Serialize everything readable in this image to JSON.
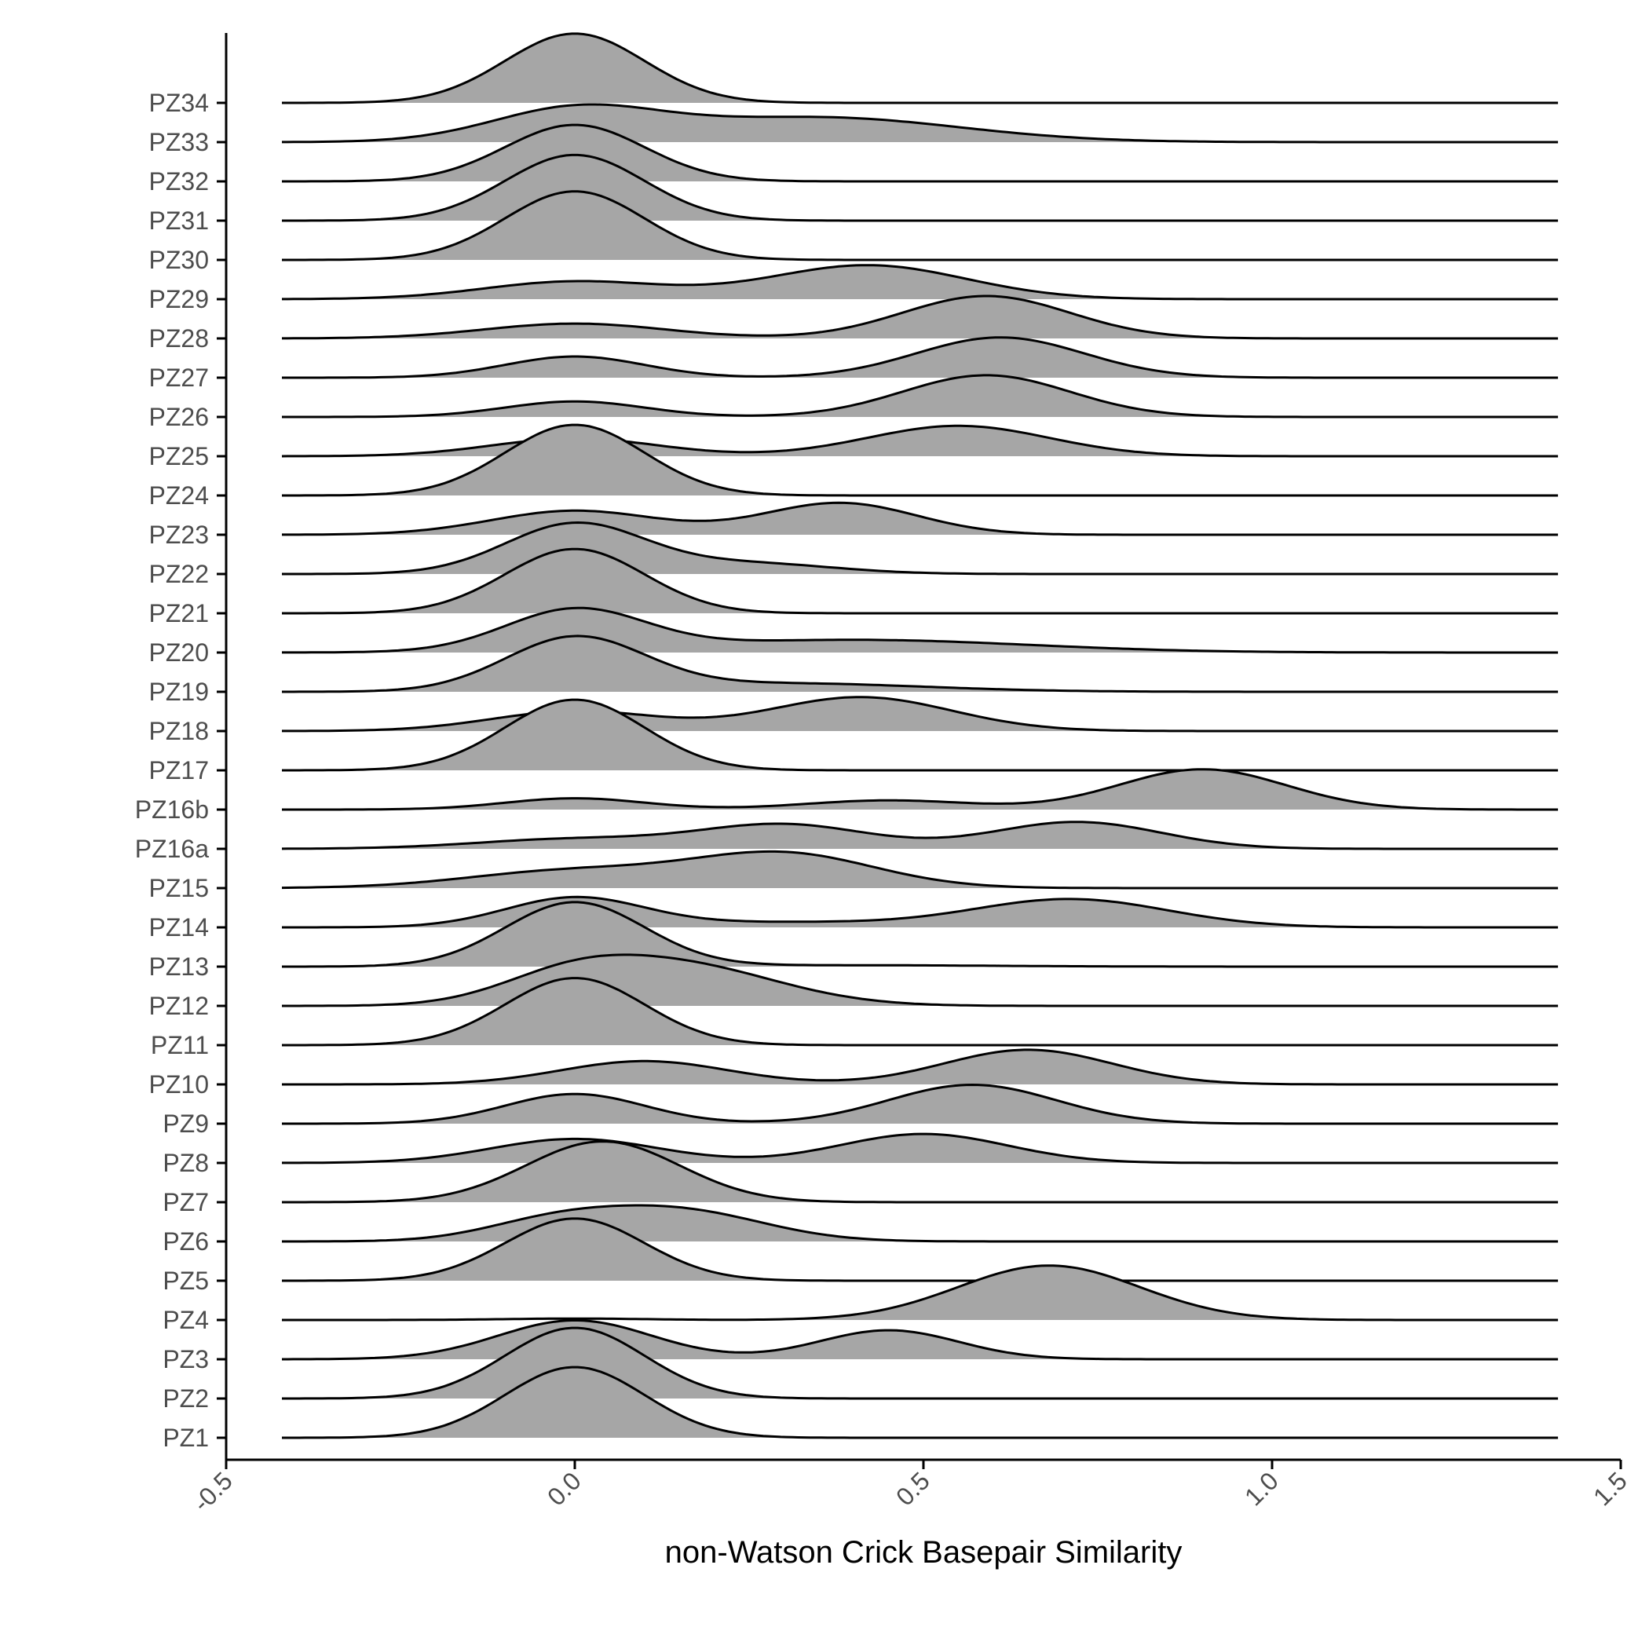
{
  "chart_data": {
    "type": "ridgeline",
    "xlabel": "non-Watson Crick Basepair Similarity",
    "xlim": [
      -0.5,
      1.5
    ],
    "x_ticks": [
      -0.5,
      0.0,
      0.5,
      1.0,
      1.5
    ],
    "x_tick_labels": [
      "-0.5",
      "0.0",
      "0.5",
      "1.0",
      "1.5"
    ],
    "density_range": [
      -0.42,
      1.41
    ],
    "fill_color": "#a6a6a6",
    "line_color": "#000000",
    "grid": false,
    "legend": "none",
    "note": "each series is a mixture of gaussian peaks: [center, width, relative_height]",
    "series": [
      {
        "name": "PZ1",
        "peaks": [
          [
            0.0,
            0.1,
            1.0
          ]
        ]
      },
      {
        "name": "PZ2",
        "peaks": [
          [
            0.0,
            0.1,
            1.0
          ]
        ]
      },
      {
        "name": "PZ3",
        "peaks": [
          [
            0.0,
            0.11,
            0.55
          ],
          [
            0.45,
            0.1,
            0.41
          ]
        ]
      },
      {
        "name": "PZ4",
        "peaks": [
          [
            0.0,
            0.1,
            0.02
          ],
          [
            0.68,
            0.13,
            0.77
          ]
        ]
      },
      {
        "name": "PZ5",
        "peaks": [
          [
            0.0,
            0.1,
            0.88
          ]
        ]
      },
      {
        "name": "PZ6",
        "peaks": [
          [
            -0.03,
            0.1,
            0.27
          ],
          [
            0.15,
            0.12,
            0.43
          ]
        ]
      },
      {
        "name": "PZ7",
        "peaks": [
          [
            0.04,
            0.11,
            0.86
          ]
        ]
      },
      {
        "name": "PZ8",
        "peaks": [
          [
            0.0,
            0.12,
            0.34
          ],
          [
            0.5,
            0.12,
            0.41
          ]
        ]
      },
      {
        "name": "PZ9",
        "peaks": [
          [
            0.0,
            0.1,
            0.42
          ],
          [
            0.57,
            0.12,
            0.55
          ]
        ]
      },
      {
        "name": "PZ10",
        "peaks": [
          [
            0.1,
            0.12,
            0.33
          ],
          [
            0.65,
            0.12,
            0.49
          ]
        ]
      },
      {
        "name": "PZ11",
        "peaks": [
          [
            0.0,
            0.1,
            0.95
          ]
        ]
      },
      {
        "name": "PZ12",
        "peaks": [
          [
            -0.01,
            0.1,
            0.33
          ],
          [
            0.15,
            0.14,
            0.57
          ]
        ]
      },
      {
        "name": "PZ13",
        "peaks": [
          [
            0.0,
            0.1,
            0.91
          ],
          [
            0.4,
            0.2,
            0.02
          ]
        ]
      },
      {
        "name": "PZ14",
        "peaks": [
          [
            0.0,
            0.1,
            0.42
          ],
          [
            0.3,
            0.15,
            0.07
          ],
          [
            0.71,
            0.14,
            0.4
          ]
        ]
      },
      {
        "name": "PZ15",
        "peaks": [
          [
            0.0,
            0.15,
            0.25
          ],
          [
            0.3,
            0.13,
            0.48
          ]
        ]
      },
      {
        "name": "PZ16a",
        "peaks": [
          [
            0.0,
            0.14,
            0.14
          ],
          [
            0.3,
            0.12,
            0.34
          ],
          [
            0.72,
            0.12,
            0.38
          ]
        ]
      },
      {
        "name": "PZ16b",
        "peaks": [
          [
            0.0,
            0.1,
            0.16
          ],
          [
            0.45,
            0.12,
            0.13
          ],
          [
            0.9,
            0.12,
            0.57
          ]
        ]
      },
      {
        "name": "PZ17",
        "peaks": [
          [
            0.0,
            0.1,
            1.0
          ]
        ]
      },
      {
        "name": "PZ18",
        "peaks": [
          [
            0.0,
            0.12,
            0.28
          ],
          [
            0.41,
            0.13,
            0.48
          ]
        ]
      },
      {
        "name": "PZ19",
        "peaks": [
          [
            0.0,
            0.1,
            0.75
          ],
          [
            0.3,
            0.2,
            0.12
          ]
        ]
      },
      {
        "name": "PZ20",
        "peaks": [
          [
            0.0,
            0.1,
            0.58
          ],
          [
            0.4,
            0.25,
            0.18
          ]
        ]
      },
      {
        "name": "PZ21",
        "peaks": [
          [
            0.0,
            0.1,
            0.91
          ]
        ]
      },
      {
        "name": "PZ22",
        "peaks": [
          [
            0.0,
            0.1,
            0.71
          ],
          [
            0.25,
            0.12,
            0.15
          ]
        ]
      },
      {
        "name": "PZ23",
        "peaks": [
          [
            0.0,
            0.12,
            0.34
          ],
          [
            0.38,
            0.11,
            0.45
          ]
        ]
      },
      {
        "name": "PZ24",
        "peaks": [
          [
            0.0,
            0.1,
            1.0
          ]
        ]
      },
      {
        "name": "PZ25",
        "peaks": [
          [
            0.0,
            0.12,
            0.25
          ],
          [
            0.55,
            0.13,
            0.43
          ]
        ]
      },
      {
        "name": "PZ26",
        "peaks": [
          [
            0.0,
            0.1,
            0.22
          ],
          [
            0.59,
            0.12,
            0.59
          ]
        ]
      },
      {
        "name": "PZ27",
        "peaks": [
          [
            0.0,
            0.1,
            0.3
          ],
          [
            0.61,
            0.12,
            0.57
          ]
        ]
      },
      {
        "name": "PZ28",
        "peaks": [
          [
            0.0,
            0.13,
            0.21
          ],
          [
            0.59,
            0.12,
            0.6
          ]
        ]
      },
      {
        "name": "PZ29",
        "peaks": [
          [
            0.0,
            0.13,
            0.25
          ],
          [
            0.42,
            0.14,
            0.48
          ]
        ]
      },
      {
        "name": "PZ30",
        "peaks": [
          [
            0.0,
            0.1,
            0.97
          ]
        ]
      },
      {
        "name": "PZ31",
        "peaks": [
          [
            0.0,
            0.1,
            0.93
          ]
        ]
      },
      {
        "name": "PZ32",
        "peaks": [
          [
            0.0,
            0.1,
            0.8
          ]
        ]
      },
      {
        "name": "PZ33",
        "peaks": [
          [
            0.0,
            0.12,
            0.45
          ],
          [
            0.35,
            0.2,
            0.35
          ]
        ]
      },
      {
        "name": "PZ34",
        "peaks": [
          [
            0.0,
            0.1,
            0.98
          ]
        ]
      }
    ]
  }
}
